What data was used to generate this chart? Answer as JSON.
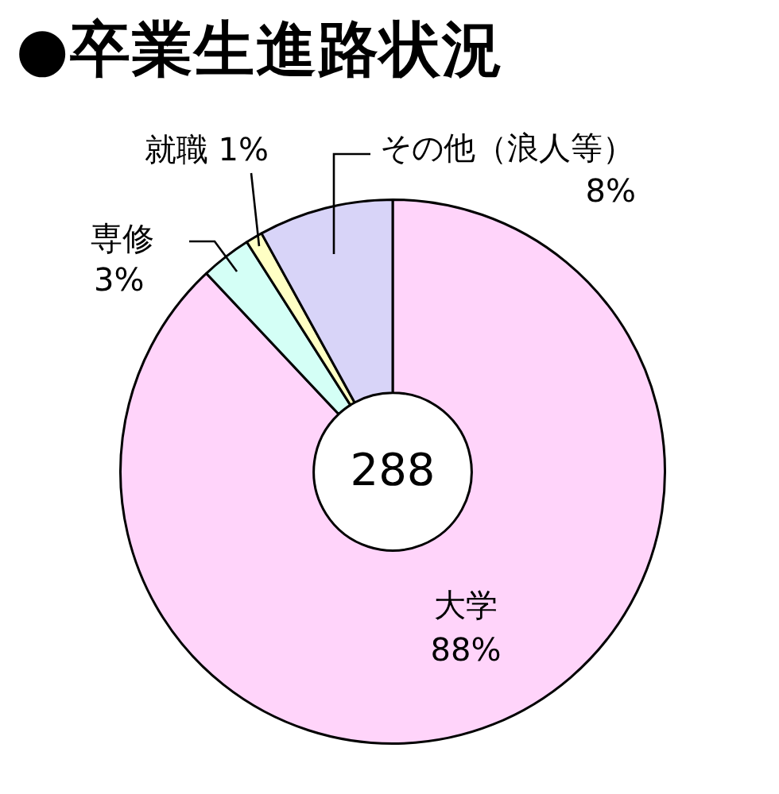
{
  "chart_data": {
    "type": "donut",
    "title": "●卒業生進路状況",
    "categories": [
      "大学",
      "専修",
      "就職",
      "その他（浪人等）"
    ],
    "values": [
      88,
      3,
      1,
      8
    ],
    "value_labels": [
      "88%",
      "3%",
      "1%",
      "8%"
    ],
    "colors": [
      "#ffd4fa",
      "#d4fff6",
      "#ffffc4",
      "#d8d4f8"
    ],
    "annotations": [
      "288"
    ],
    "legend": false
  }
}
